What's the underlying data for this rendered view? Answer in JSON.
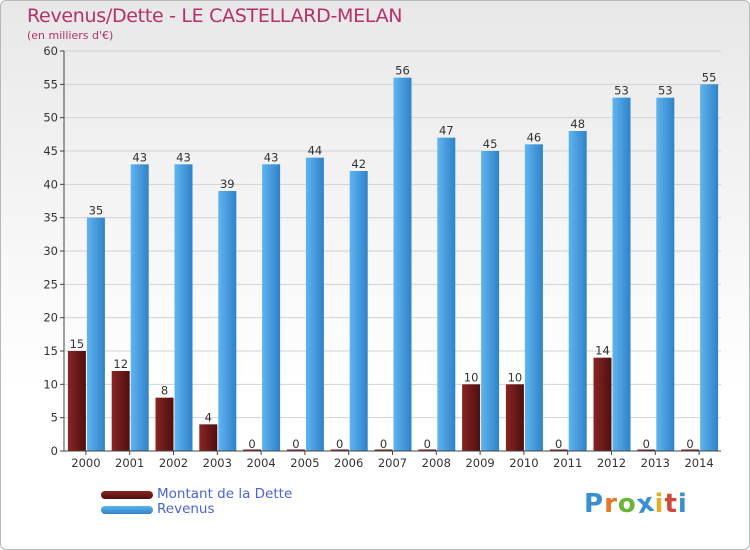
{
  "header": {
    "title": "Revenus/Dette - LE CASTELLARD-MELAN",
    "subtitle": "(en milliers d'€)"
  },
  "legend": {
    "items": [
      {
        "label": "Montant de la Dette",
        "color": "#6e1a1a"
      },
      {
        "label": "Revenus",
        "color": "#4aa3e6"
      }
    ]
  },
  "logo": {
    "text": "Proxiti",
    "letters": [
      {
        "char": "P",
        "color": "#3a8fd0"
      },
      {
        "char": "r",
        "color": "#e07a2a"
      },
      {
        "char": "o",
        "color": "#6bb33a"
      },
      {
        "char": "x",
        "color": "#3a8fd0"
      },
      {
        "char": "i",
        "color": "#e0b02a"
      },
      {
        "char": "t",
        "color": "#d04a3a"
      },
      {
        "char": "i",
        "color": "#3a8fd0"
      }
    ]
  },
  "chart_data": {
    "type": "bar",
    "title": "Revenus/Dette - LE CASTELLARD-MELAN",
    "subtitle": "(en milliers d'€)",
    "categories": [
      "2000",
      "2001",
      "2002",
      "2003",
      "2004",
      "2005",
      "2006",
      "2007",
      "2008",
      "2009",
      "2010",
      "2011",
      "2012",
      "2013",
      "2014"
    ],
    "series": [
      {
        "name": "Montant de la Dette",
        "color": "#6e1a1a",
        "values": [
          15,
          12,
          8,
          4,
          0,
          0,
          0,
          0,
          0,
          10,
          10,
          0,
          14,
          0,
          0
        ]
      },
      {
        "name": "Revenus",
        "color": "#4aa3e6",
        "values": [
          35,
          43,
          43,
          39,
          43,
          44,
          42,
          56,
          47,
          45,
          46,
          48,
          53,
          53,
          55
        ]
      }
    ],
    "ylim": [
      0,
      60
    ],
    "yticks": [
      0,
      5,
      10,
      15,
      20,
      25,
      30,
      35,
      40,
      45,
      50,
      55,
      60
    ],
    "grid": true,
    "legend_position": "bottom-left",
    "data_labels": true
  }
}
